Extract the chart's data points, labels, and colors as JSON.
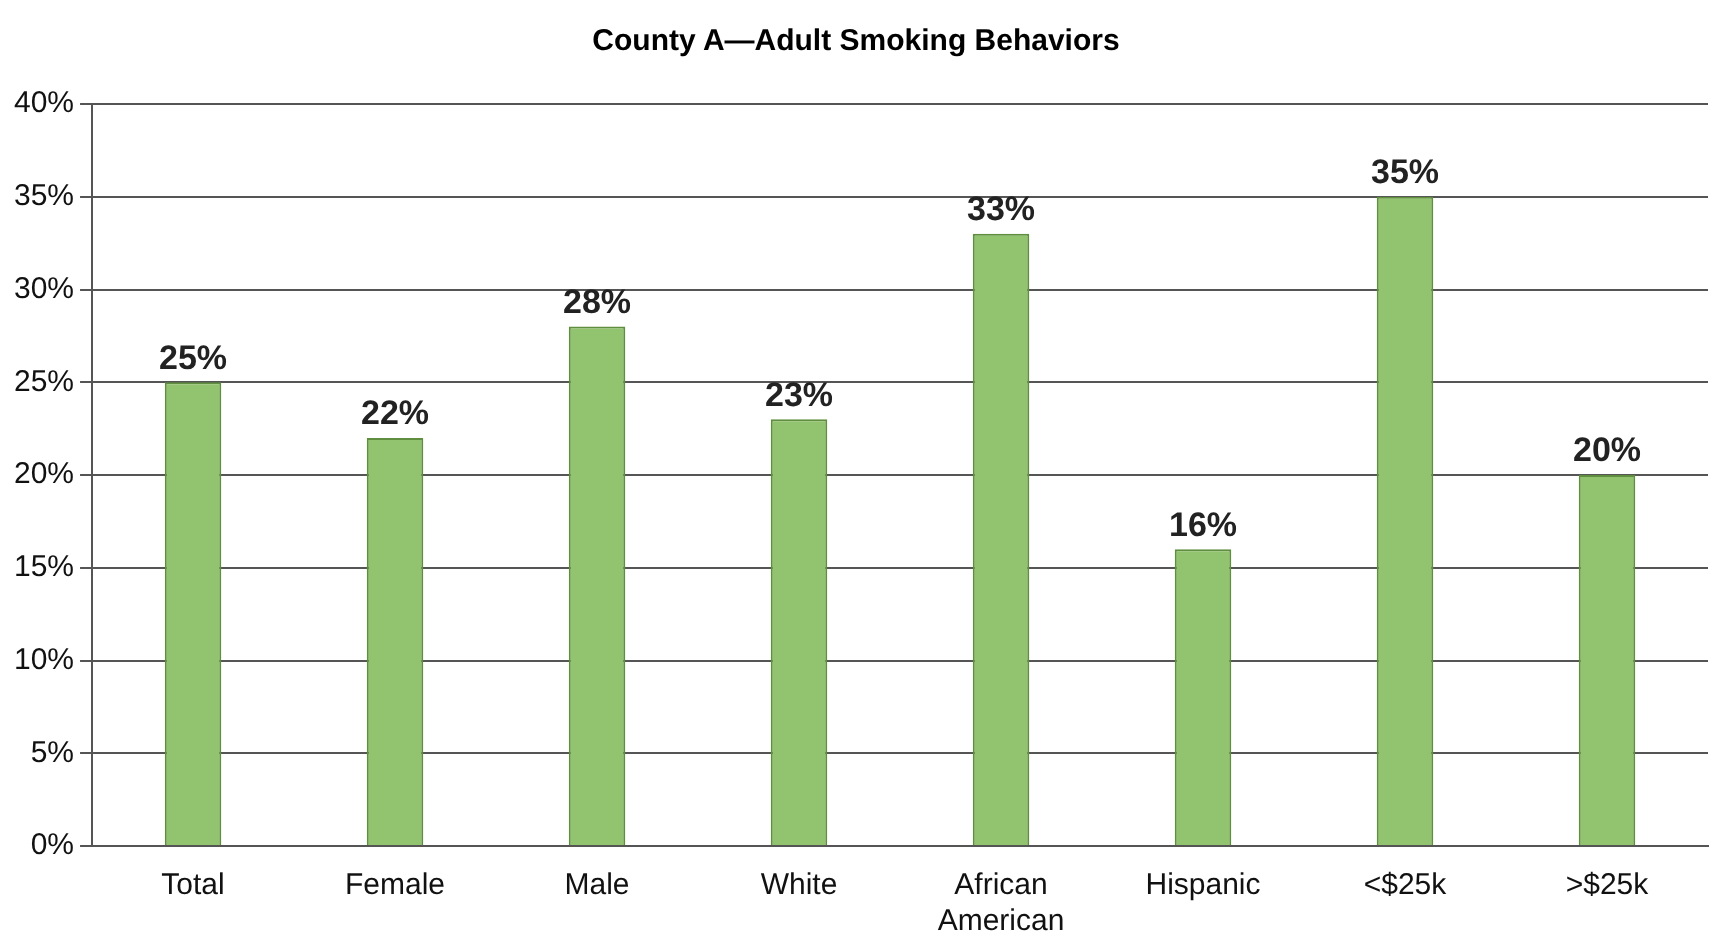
{
  "chart_data": {
    "type": "bar",
    "title": "County A—Adult Smoking Behaviors",
    "categories": [
      "Total",
      "Female",
      "Male",
      "White",
      "African American",
      "Hispanic",
      "<$25k",
      ">$25k"
    ],
    "values": [
      25,
      22,
      28,
      23,
      33,
      16,
      35,
      20
    ],
    "value_labels": [
      "25%",
      "22%",
      "28%",
      "23%",
      "33%",
      "16%",
      "35%",
      "20%"
    ],
    "color": "#92c36f",
    "ylim": [
      0,
      40
    ],
    "yticks": [
      {
        "value": 0,
        "label": "0%"
      },
      {
        "value": 5,
        "label": "5%"
      },
      {
        "value": 10,
        "label": "10%"
      },
      {
        "value": 15,
        "label": "15%"
      },
      {
        "value": 20,
        "label": "20%"
      },
      {
        "value": 25,
        "label": "25%"
      },
      {
        "value": 30,
        "label": "30%"
      },
      {
        "value": 35,
        "label": "35%"
      },
      {
        "value": 40,
        "label": "40%"
      }
    ],
    "grid": "y",
    "legend": false
  }
}
